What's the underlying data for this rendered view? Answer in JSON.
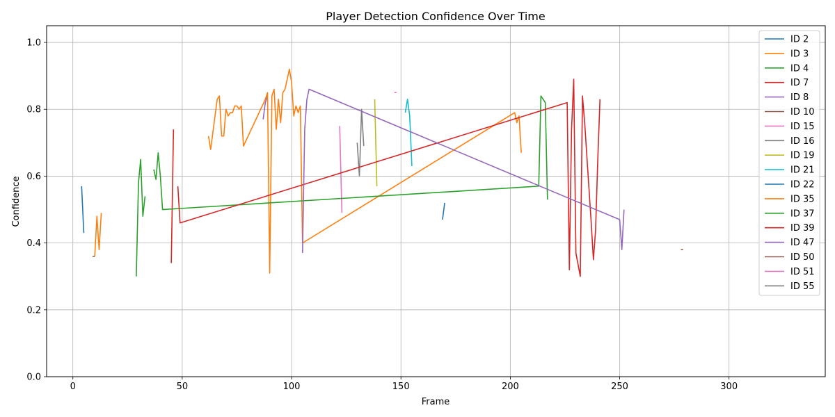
{
  "chart_data": {
    "type": "line",
    "title": "Player Detection Confidence Over Time",
    "xlabel": "Frame",
    "ylabel": "Confidence",
    "xlim": [
      -12,
      344
    ],
    "ylim": [
      0.0,
      1.05
    ],
    "xticks": [
      0,
      50,
      100,
      150,
      200,
      250,
      300
    ],
    "yticks": [
      0.0,
      0.2,
      0.4,
      0.6,
      0.8,
      1.0
    ],
    "xtick_labels": [
      "0",
      "50",
      "100",
      "150",
      "200",
      "250",
      "300"
    ],
    "ytick_labels": [
      "0.0",
      "0.2",
      "0.4",
      "0.6",
      "0.8",
      "1.0"
    ],
    "grid": true,
    "legend_position": "upper-right",
    "series": [
      {
        "name": "ID 2",
        "color": "#1f77b4",
        "x": [
          4,
          5
        ],
        "y": [
          0.57,
          0.43
        ]
      },
      {
        "name": "ID 3",
        "color": "#ff7f0e",
        "x": [
          10,
          11,
          12,
          13
        ],
        "y": [
          0.36,
          0.48,
          0.38,
          0.49
        ]
      },
      {
        "name": "ID 4",
        "color": "#2ca02c",
        "x": [
          29,
          30,
          31,
          32,
          33
        ],
        "y": [
          0.3,
          0.58,
          0.65,
          0.48,
          0.54
        ]
      },
      {
        "name": "ID 7",
        "color": "#d62728",
        "x": [
          45,
          46
        ],
        "y": [
          0.34,
          0.74
        ]
      },
      {
        "name": "ID 8",
        "color": "#9467bd",
        "x": [
          87,
          88,
          89
        ],
        "y": [
          0.77,
          0.82,
          0.84
        ]
      },
      {
        "name": "ID 10",
        "color": "#8c564b",
        "x": [
          9,
          10
        ],
        "y": [
          0.36,
          0.36
        ]
      },
      {
        "name": "ID 15",
        "color": "#e377c2",
        "x": [
          122,
          123
        ],
        "y": [
          0.75,
          0.49
        ]
      },
      {
        "name": "ID 16",
        "color": "#7f7f7f",
        "x": [
          130,
          131,
          132,
          133
        ],
        "y": [
          0.7,
          0.6,
          0.8,
          0.69
        ]
      },
      {
        "name": "ID 19",
        "color": "#bcbd22",
        "x": [
          138,
          139
        ],
        "y": [
          0.83,
          0.57
        ]
      },
      {
        "name": "ID 21",
        "color": "#17becf",
        "x": [
          152,
          153,
          154,
          155
        ],
        "y": [
          0.79,
          0.83,
          0.78,
          0.63
        ]
      },
      {
        "name": "ID 22",
        "color": "#1f77b4",
        "x": [
          169,
          170
        ],
        "y": [
          0.47,
          0.52
        ]
      },
      {
        "name": "ID 35",
        "color": "#ff7f0e",
        "x": [
          62,
          63,
          66,
          67,
          68,
          69,
          70,
          71,
          72,
          73,
          74,
          75,
          76,
          77,
          78,
          88,
          89,
          90,
          91,
          92,
          93,
          94,
          95,
          96,
          97,
          98,
          99,
          100,
          101,
          102,
          103,
          104,
          105,
          202,
          203,
          204,
          205
        ],
        "y": [
          0.72,
          0.68,
          0.83,
          0.84,
          0.72,
          0.72,
          0.8,
          0.78,
          0.79,
          0.79,
          0.81,
          0.81,
          0.8,
          0.81,
          0.69,
          0.83,
          0.85,
          0.31,
          0.84,
          0.86,
          0.74,
          0.83,
          0.76,
          0.85,
          0.86,
          0.89,
          0.92,
          0.88,
          0.78,
          0.81,
          0.79,
          0.81,
          0.4,
          0.79,
          0.76,
          0.78,
          0.67
        ]
      },
      {
        "name": "ID 37",
        "color": "#2ca02c",
        "x": [
          37,
          38,
          39,
          40,
          41,
          213,
          214,
          215,
          216,
          217
        ],
        "y": [
          0.62,
          0.59,
          0.67,
          0.6,
          0.5,
          0.57,
          0.84,
          0.83,
          0.82,
          0.53
        ]
      },
      {
        "name": "ID 39",
        "color": "#d62728",
        "x": [
          48,
          49,
          226,
          227,
          228,
          229,
          230,
          232,
          233,
          234,
          237,
          238,
          239,
          240,
          241
        ],
        "y": [
          0.57,
          0.46,
          0.82,
          0.32,
          0.74,
          0.89,
          0.37,
          0.3,
          0.84,
          0.76,
          0.46,
          0.35,
          0.44,
          0.65,
          0.83
        ]
      },
      {
        "name": "ID 47",
        "color": "#9467bd",
        "x": [
          105,
          106,
          107,
          108,
          250,
          251,
          252
        ],
        "y": [
          0.37,
          0.74,
          0.83,
          0.86,
          0.47,
          0.38,
          0.5
        ]
      },
      {
        "name": "ID 50",
        "color": "#8c564b",
        "x": [
          278,
          279
        ],
        "y": [
          0.38,
          0.38
        ]
      },
      {
        "name": "ID 51",
        "color": "#e377c2",
        "x": [
          147,
          148
        ],
        "y": [
          0.85,
          0.85
        ]
      },
      {
        "name": "ID 55",
        "color": "#7f7f7f",
        "x": [],
        "y": []
      }
    ]
  }
}
